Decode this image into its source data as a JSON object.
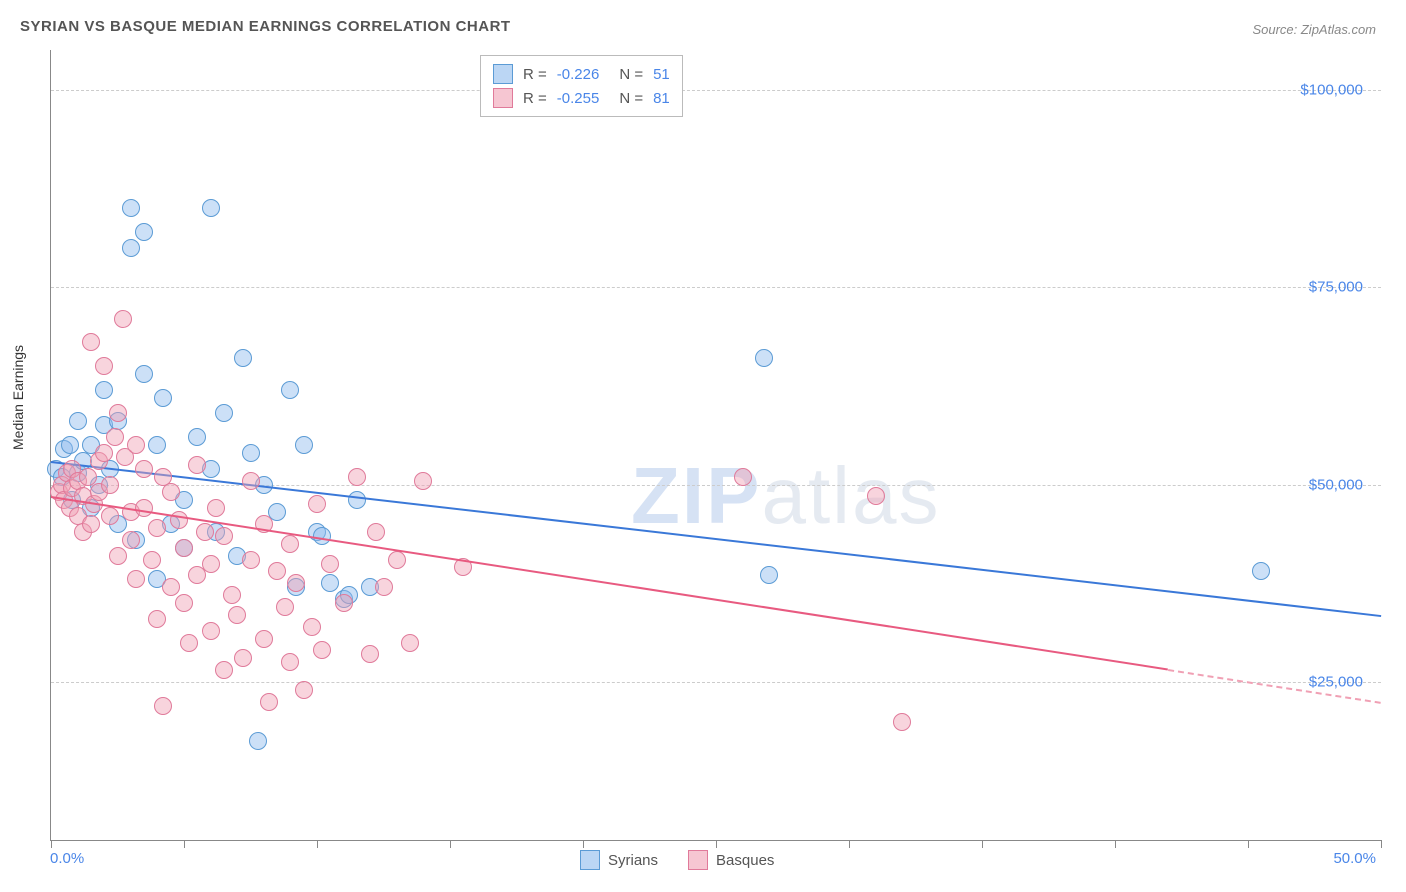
{
  "title": "SYRIAN VS BASQUE MEDIAN EARNINGS CORRELATION CHART",
  "source": "Source: ZipAtlas.com",
  "yaxis_title": "Median Earnings",
  "xaxis": {
    "min_label": "0.0%",
    "max_label": "50.0%",
    "min": 0,
    "max": 50
  },
  "yaxis": {
    "min": 5000,
    "max": 105000,
    "ticks": [
      25000,
      50000,
      75000,
      100000
    ],
    "tick_labels": [
      "$25,000",
      "$50,000",
      "$75,000",
      "$100,000"
    ]
  },
  "xticks": [
    0,
    5,
    10,
    15,
    20,
    25,
    30,
    35,
    40,
    45,
    50
  ],
  "grid_color": "#cccccc",
  "background_color": "#ffffff",
  "axis_color": "#888888",
  "text_color": "#555555",
  "value_color": "#4a86e8",
  "marker_radius": 8,
  "series": [
    {
      "name": "Syrians",
      "key": "a",
      "fill": "rgba(142,187,237,0.45)",
      "stroke": "#5b9bd5",
      "trend_color": "#3a78d8",
      "R": "-0.226",
      "N": "51",
      "trend": {
        "x1": 0,
        "y1": 53000,
        "x2": 50,
        "y2": 33500,
        "dash_from_x": null
      },
      "points": [
        [
          0.2,
          52000
        ],
        [
          0.4,
          51000
        ],
        [
          0.5,
          54500
        ],
        [
          0.7,
          55000
        ],
        [
          0.8,
          48000
        ],
        [
          1.0,
          58000
        ],
        [
          1.0,
          51500
        ],
        [
          1.2,
          53000
        ],
        [
          1.5,
          55000
        ],
        [
          1.5,
          47000
        ],
        [
          1.8,
          50000
        ],
        [
          2.0,
          57500
        ],
        [
          2.0,
          62000
        ],
        [
          2.2,
          52000
        ],
        [
          2.5,
          58000
        ],
        [
          2.5,
          45000
        ],
        [
          3.0,
          80000
        ],
        [
          3.0,
          85000
        ],
        [
          3.2,
          43000
        ],
        [
          3.5,
          64000
        ],
        [
          3.5,
          82000
        ],
        [
          4.0,
          38000
        ],
        [
          4.0,
          55000
        ],
        [
          4.2,
          61000
        ],
        [
          4.5,
          45000
        ],
        [
          5.0,
          48000
        ],
        [
          5.0,
          42000
        ],
        [
          5.5,
          56000
        ],
        [
          6.0,
          85000
        ],
        [
          6.0,
          52000
        ],
        [
          6.2,
          44000
        ],
        [
          6.5,
          59000
        ],
        [
          7.0,
          41000
        ],
        [
          7.2,
          66000
        ],
        [
          7.5,
          54000
        ],
        [
          7.8,
          17500
        ],
        [
          8.0,
          50000
        ],
        [
          8.5,
          46500
        ],
        [
          9.0,
          62000
        ],
        [
          9.2,
          37000
        ],
        [
          9.5,
          55000
        ],
        [
          10.0,
          44000
        ],
        [
          10.2,
          43500
        ],
        [
          10.5,
          37500
        ],
        [
          11.0,
          35500
        ],
        [
          11.2,
          36000
        ],
        [
          11.5,
          48000
        ],
        [
          12.0,
          37000
        ],
        [
          26.8,
          66000
        ],
        [
          27.0,
          38500
        ],
        [
          45.5,
          39000
        ]
      ]
    },
    {
      "name": "Basques",
      "key": "b",
      "fill": "rgba(240,160,180,0.45)",
      "stroke": "#e07a9a",
      "trend_color": "#e85a80",
      "R": "-0.255",
      "N": "81",
      "trend": {
        "x1": 0,
        "y1": 48500,
        "x2": 50,
        "y2": 22500,
        "dash_from_x": 42
      },
      "points": [
        [
          0.3,
          49000
        ],
        [
          0.4,
          50000
        ],
        [
          0.5,
          48000
        ],
        [
          0.6,
          51500
        ],
        [
          0.7,
          47000
        ],
        [
          0.8,
          52000
        ],
        [
          0.8,
          49500
        ],
        [
          1.0,
          50500
        ],
        [
          1.0,
          46000
        ],
        [
          1.2,
          48500
        ],
        [
          1.2,
          44000
        ],
        [
          1.4,
          51000
        ],
        [
          1.5,
          45000
        ],
        [
          1.5,
          68000
        ],
        [
          1.6,
          47500
        ],
        [
          1.8,
          49000
        ],
        [
          1.8,
          53000
        ],
        [
          2.0,
          65000
        ],
        [
          2.0,
          54000
        ],
        [
          2.2,
          46000
        ],
        [
          2.2,
          50000
        ],
        [
          2.4,
          56000
        ],
        [
          2.5,
          59000
        ],
        [
          2.5,
          41000
        ],
        [
          2.7,
          71000
        ],
        [
          2.8,
          53500
        ],
        [
          3.0,
          46500
        ],
        [
          3.0,
          43000
        ],
        [
          3.2,
          38000
        ],
        [
          3.2,
          55000
        ],
        [
          3.5,
          52000
        ],
        [
          3.5,
          47000
        ],
        [
          3.8,
          40500
        ],
        [
          4.0,
          44500
        ],
        [
          4.0,
          33000
        ],
        [
          4.2,
          51000
        ],
        [
          4.2,
          22000
        ],
        [
          4.5,
          49000
        ],
        [
          4.5,
          37000
        ],
        [
          4.8,
          45500
        ],
        [
          5.0,
          42000
        ],
        [
          5.0,
          35000
        ],
        [
          5.2,
          30000
        ],
        [
          5.5,
          52500
        ],
        [
          5.5,
          38500
        ],
        [
          5.8,
          44000
        ],
        [
          6.0,
          40000
        ],
        [
          6.0,
          31500
        ],
        [
          6.2,
          47000
        ],
        [
          6.5,
          26500
        ],
        [
          6.5,
          43500
        ],
        [
          6.8,
          36000
        ],
        [
          7.0,
          33500
        ],
        [
          7.2,
          28000
        ],
        [
          7.5,
          50500
        ],
        [
          7.5,
          40500
        ],
        [
          8.0,
          45000
        ],
        [
          8.0,
          30500
        ],
        [
          8.2,
          22500
        ],
        [
          8.5,
          39000
        ],
        [
          8.8,
          34500
        ],
        [
          9.0,
          42500
        ],
        [
          9.0,
          27500
        ],
        [
          9.2,
          37500
        ],
        [
          9.5,
          24000
        ],
        [
          9.8,
          32000
        ],
        [
          10.0,
          47500
        ],
        [
          10.2,
          29000
        ],
        [
          10.5,
          40000
        ],
        [
          11.0,
          35000
        ],
        [
          11.5,
          51000
        ],
        [
          12.0,
          28500
        ],
        [
          12.2,
          44000
        ],
        [
          12.5,
          37000
        ],
        [
          13.0,
          40500
        ],
        [
          13.5,
          30000
        ],
        [
          14.0,
          50500
        ],
        [
          15.5,
          39500
        ],
        [
          26.0,
          51000
        ],
        [
          31.0,
          48500
        ],
        [
          32.0,
          20000
        ]
      ]
    }
  ],
  "legend": {
    "series_a": "Syrians",
    "series_b": "Basques"
  },
  "watermark": {
    "bold": "ZIP",
    "rest": "atlas"
  }
}
